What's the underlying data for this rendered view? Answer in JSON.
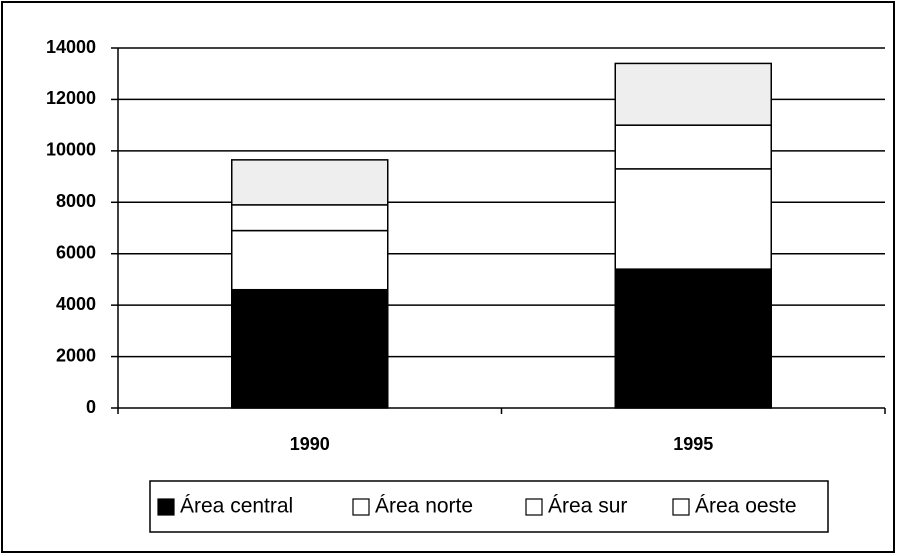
{
  "chart_data": {
    "type": "stacked_bar",
    "categories": [
      "1990",
      "1995"
    ],
    "series": [
      {
        "name": "Área central",
        "color": "#000000",
        "values": [
          4600,
          5400
        ]
      },
      {
        "name": "Área norte",
        "color": "#ffffff",
        "values": [
          2300,
          3900
        ]
      },
      {
        "name": "Área sur",
        "color": "#ffffff",
        "values": [
          1000,
          1700
        ]
      },
      {
        "name": "Área oeste",
        "color": "#eeeeee",
        "values": [
          1750,
          2400
        ]
      }
    ],
    "ylim": [
      0,
      14000
    ],
    "yticks": [
      0,
      2000,
      4000,
      6000,
      8000,
      10000,
      12000,
      14000
    ],
    "grid": true,
    "legend": "bottom"
  }
}
